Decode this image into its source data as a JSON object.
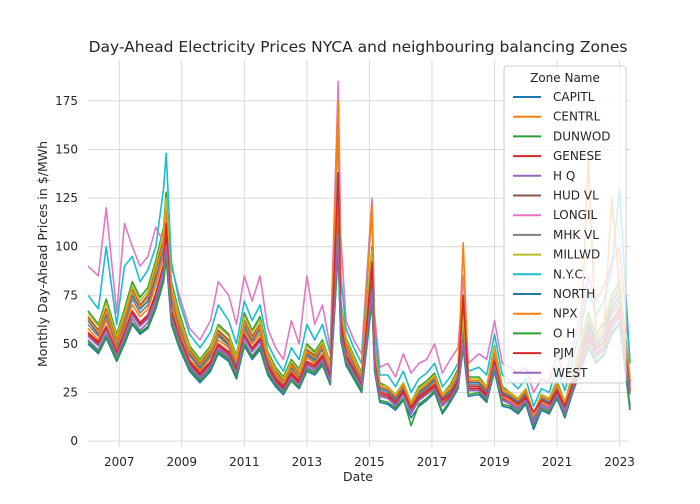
{
  "chart_data": {
    "type": "line",
    "title": "Day-Ahead Electricity Prices NYCA and neighbouring balancing Zones",
    "xlabel": "Date",
    "ylabel": "Monthly Day-Ahead Prices in $/MWh",
    "xlim": [
      "2006-01",
      "2023-05"
    ],
    "ylim": [
      -3,
      196
    ],
    "xticks": [
      "2007",
      "2009",
      "2011",
      "2013",
      "2015",
      "2017",
      "2019",
      "2021",
      "2023"
    ],
    "yticks": [
      0,
      25,
      50,
      75,
      100,
      125,
      150,
      175
    ],
    "grid": true,
    "legend": {
      "title": "Zone Name",
      "position": "top-right"
    },
    "x_dates": [
      "2006-01",
      "2006-05",
      "2006-08",
      "2006-12",
      "2007-03",
      "2007-06",
      "2007-09",
      "2007-12",
      "2008-03",
      "2008-06",
      "2008-07",
      "2008-09",
      "2008-12",
      "2009-04",
      "2009-08",
      "2009-12",
      "2010-03",
      "2010-07",
      "2010-10",
      "2011-01",
      "2011-04",
      "2011-07",
      "2011-10",
      "2012-01",
      "2012-04",
      "2012-07",
      "2012-10",
      "2013-01",
      "2013-04",
      "2013-07",
      "2013-10",
      "2014-01",
      "2014-02",
      "2014-04",
      "2014-07",
      "2014-10",
      "2015-02",
      "2015-03",
      "2015-05",
      "2015-08",
      "2015-11",
      "2016-02",
      "2016-05",
      "2016-08",
      "2016-11",
      "2017-02",
      "2017-05",
      "2017-08",
      "2017-11",
      "2018-01",
      "2018-03",
      "2018-07",
      "2018-10",
      "2019-01",
      "2019-04",
      "2019-07",
      "2019-10",
      "2020-01",
      "2020-04",
      "2020-07",
      "2020-10",
      "2021-01",
      "2021-04",
      "2021-07",
      "2021-10",
      "2022-01",
      "2022-04",
      "2022-07",
      "2022-10",
      "2023-01",
      "2023-05"
    ],
    "series": [
      {
        "name": "CAPITL",
        "color": "#1f77b4",
        "values": [
          62,
          55,
          65,
          50,
          62,
          75,
          68,
          72,
          85,
          100,
          115,
          75,
          60,
          45,
          38,
          45,
          55,
          50,
          40,
          60,
          52,
          58,
          42,
          35,
          30,
          38,
          34,
          45,
          42,
          48,
          36,
          120,
          65,
          48,
          40,
          32,
          90,
          45,
          27,
          26,
          22,
          28,
          18,
          25,
          28,
          32,
          22,
          26,
          34,
          60,
          30,
          30,
          26,
          45,
          25,
          23,
          20,
          25,
          13,
          22,
          20,
          28,
          18,
          32,
          45,
          60,
          50,
          55,
          68,
          75,
          30
        ]
      },
      {
        "name": "CENTRL",
        "color": "#ff7f0e",
        "values": [
          58,
          52,
          62,
          48,
          58,
          70,
          64,
          68,
          80,
          95,
          110,
          70,
          56,
          42,
          36,
          43,
          52,
          48,
          38,
          57,
          50,
          55,
          40,
          33,
          28,
          36,
          32,
          43,
          40,
          45,
          34,
          115,
          60,
          45,
          38,
          30,
          85,
          42,
          25,
          24,
          20,
          26,
          16,
          23,
          26,
          30,
          20,
          24,
          32,
          55,
          28,
          28,
          24,
          42,
          23,
          21,
          18,
          23,
          11,
          20,
          18,
          26,
          16,
          30,
          42,
          58,
          48,
          52,
          65,
          70,
          27
        ]
      },
      {
        "name": "DUNWOD",
        "color": "#2ca02c",
        "values": [
          67,
          60,
          73,
          55,
          68,
          82,
          74,
          79,
          93,
          110,
          128,
          82,
          66,
          49,
          42,
          49,
          60,
          55,
          44,
          66,
          57,
          64,
          46,
          38,
          33,
          42,
          37,
          50,
          46,
          52,
          40,
          135,
          72,
          53,
          44,
          35,
          100,
          50,
          30,
          28,
          24,
          30,
          20,
          28,
          31,
          35,
          24,
          29,
          37,
          66,
          33,
          33,
          28,
          49,
          28,
          25,
          22,
          27,
          14,
          24,
          22,
          31,
          20,
          35,
          50,
          66,
          55,
          61,
          75,
          82,
          33
        ]
      },
      {
        "name": "GENESE",
        "color": "#d62728",
        "values": [
          55,
          50,
          58,
          45,
          55,
          66,
          60,
          64,
          75,
          90,
          104,
          66,
          53,
          40,
          34,
          40,
          49,
          45,
          36,
          54,
          47,
          52,
          38,
          31,
          27,
          34,
          30,
          40,
          38,
          43,
          32,
          108,
          57,
          43,
          36,
          28,
          80,
          40,
          24,
          23,
          19,
          25,
          15,
          22,
          25,
          28,
          19,
          23,
          30,
          52,
          27,
          27,
          23,
          40,
          22,
          20,
          17,
          22,
          10,
          19,
          17,
          25,
          15,
          28,
          40,
          54,
          45,
          49,
          61,
          66,
          25
        ]
      },
      {
        "name": "H Q",
        "color": "#9467bd",
        "values": [
          52,
          47,
          55,
          43,
          52,
          63,
          57,
          61,
          71,
          85,
          98,
          63,
          50,
          38,
          32,
          38,
          47,
          43,
          34,
          51,
          44,
          49,
          36,
          30,
          26,
          32,
          29,
          38,
          36,
          41,
          31,
          102,
          55,
          41,
          34,
          27,
          76,
          38,
          23,
          22,
          19,
          24,
          15,
          21,
          24,
          27,
          19,
          22,
          29,
          51,
          26,
          26,
          22,
          38,
          21,
          20,
          17,
          21,
          11,
          19,
          17,
          24,
          15,
          27,
          38,
          51,
          43,
          47,
          58,
          64,
          26
        ]
      },
      {
        "name": "HUD VL",
        "color": "#8c564b",
        "values": [
          64,
          57,
          68,
          52,
          64,
          78,
          70,
          75,
          88,
          104,
          120,
          78,
          62,
          47,
          40,
          47,
          57,
          52,
          42,
          62,
          54,
          60,
          44,
          36,
          31,
          40,
          35,
          47,
          44,
          50,
          37,
          126,
          68,
          50,
          42,
          33,
          94,
          47,
          28,
          27,
          23,
          29,
          19,
          26,
          29,
          33,
          23,
          27,
          35,
          62,
          31,
          31,
          27,
          47,
          26,
          24,
          21,
          26,
          14,
          23,
          21,
          29,
          19,
          33,
          47,
          62,
          52,
          57,
          71,
          78,
          31
        ]
      },
      {
        "name": "LONGIL",
        "color": "#e377c2",
        "values": [
          90,
          85,
          120,
          66,
          112,
          100,
          90,
          95,
          110,
          102,
          120,
          90,
          75,
          58,
          52,
          62,
          82,
          75,
          60,
          85,
          72,
          85,
          58,
          48,
          42,
          62,
          50,
          85,
          60,
          70,
          48,
          185,
          105,
          62,
          52,
          45,
          125,
          65,
          38,
          40,
          33,
          45,
          35,
          40,
          42,
          50,
          35,
          42,
          48,
          85,
          40,
          45,
          42,
          62,
          40,
          38,
          35,
          38,
          25,
          32,
          30,
          45,
          32,
          48,
          65,
          85,
          72,
          80,
          92,
          100,
          42
        ]
      },
      {
        "name": "MHK VL",
        "color": "#7f7f7f",
        "values": [
          60,
          54,
          64,
          49,
          60,
          73,
          66,
          70,
          83,
          98,
          113,
          73,
          58,
          44,
          37,
          44,
          54,
          49,
          39,
          58,
          51,
          57,
          41,
          34,
          29,
          37,
          33,
          44,
          41,
          47,
          35,
          118,
          63,
          47,
          39,
          31,
          88,
          44,
          26,
          25,
          21,
          27,
          17,
          24,
          27,
          31,
          21,
          25,
          33,
          58,
          29,
          29,
          25,
          44,
          24,
          22,
          19,
          24,
          12,
          21,
          19,
          27,
          17,
          31,
          44,
          58,
          49,
          54,
          66,
          72,
          29
        ]
      },
      {
        "name": "MILLWD",
        "color": "#bcbd22",
        "values": [
          66,
          59,
          71,
          54,
          66,
          80,
          72,
          77,
          91,
          108,
          125,
          80,
          64,
          48,
          41,
          48,
          59,
          54,
          43,
          64,
          56,
          62,
          45,
          37,
          32,
          41,
          36,
          49,
          45,
          51,
          39,
          132,
          70,
          52,
          43,
          34,
          98,
          49,
          29,
          28,
          24,
          30,
          20,
          27,
          30,
          34,
          24,
          28,
          36,
          64,
          32,
          32,
          28,
          48,
          27,
          25,
          22,
          27,
          14,
          24,
          22,
          30,
          20,
          34,
          49,
          64,
          54,
          60,
          73,
          80,
          32
        ]
      },
      {
        "name": "N.Y.C.",
        "color": "#17becf",
        "values": [
          75,
          68,
          100,
          60,
          90,
          95,
          82,
          88,
          100,
          130,
          148,
          92,
          72,
          55,
          48,
          56,
          70,
          62,
          50,
          72,
          62,
          70,
          50,
          42,
          36,
          48,
          42,
          60,
          52,
          60,
          45,
          160,
          85,
          58,
          48,
          40,
          120,
          58,
          34,
          34,
          28,
          36,
          25,
          32,
          35,
          40,
          28,
          33,
          40,
          72,
          36,
          38,
          34,
          55,
          34,
          31,
          27,
          32,
          18,
          27,
          25,
          38,
          26,
          42,
          58,
          78,
          65,
          72,
          90,
          130,
          40
        ]
      },
      {
        "name": "NORTH",
        "color": "#1f77b4",
        "values": [
          50,
          45,
          53,
          41,
          50,
          60,
          55,
          58,
          68,
          82,
          94,
          60,
          48,
          36,
          30,
          36,
          45,
          41,
          32,
          49,
          42,
          47,
          34,
          28,
          24,
          31,
          27,
          36,
          34,
          39,
          29,
          98,
          52,
          39,
          32,
          25,
          72,
          36,
          20,
          19,
          16,
          21,
          12,
          18,
          21,
          25,
          14,
          20,
          27,
          48,
          23,
          24,
          20,
          36,
          18,
          17,
          14,
          19,
          6,
          16,
          14,
          22,
          12,
          25,
          36,
          48,
          40,
          44,
          55,
          60,
          16
        ]
      },
      {
        "name": "NPX",
        "color": "#ff7f0e",
        "values": [
          63,
          56,
          67,
          51,
          63,
          77,
          69,
          74,
          87,
          102,
          118,
          76,
          61,
          46,
          39,
          46,
          56,
          51,
          41,
          61,
          53,
          59,
          43,
          35,
          30,
          39,
          34,
          46,
          43,
          49,
          37,
          175,
          67,
          49,
          41,
          33,
          122,
          46,
          28,
          27,
          23,
          29,
          19,
          26,
          29,
          33,
          23,
          27,
          35,
          102,
          31,
          31,
          27,
          46,
          26,
          24,
          21,
          26,
          13,
          23,
          21,
          29,
          19,
          33,
          46,
          145,
          52,
          57,
          125,
          78,
          30
        ]
      },
      {
        "name": "O H",
        "color": "#2ca02c",
        "values": [
          51,
          46,
          54,
          42,
          51,
          61,
          56,
          59,
          69,
          83,
          95,
          61,
          49,
          37,
          31,
          37,
          46,
          42,
          33,
          50,
          43,
          48,
          35,
          29,
          25,
          31,
          28,
          37,
          35,
          40,
          30,
          100,
          53,
          40,
          33,
          26,
          74,
          37,
          21,
          20,
          17,
          22,
          8,
          19,
          22,
          26,
          15,
          21,
          28,
          49,
          24,
          25,
          21,
          37,
          19,
          18,
          15,
          20,
          8,
          17,
          15,
          23,
          13,
          26,
          37,
          49,
          41,
          45,
          56,
          61,
          18
        ]
      },
      {
        "name": "PJM",
        "color": "#d62728",
        "values": [
          56,
          51,
          59,
          46,
          56,
          67,
          61,
          65,
          76,
          91,
          112,
          67,
          54,
          41,
          35,
          41,
          50,
          46,
          37,
          55,
          48,
          53,
          39,
          32,
          28,
          35,
          31,
          41,
          39,
          44,
          33,
          138,
          62,
          44,
          37,
          29,
          92,
          41,
          25,
          24,
          20,
          26,
          17,
          23,
          26,
          29,
          21,
          24,
          31,
          75,
          28,
          28,
          24,
          41,
          24,
          22,
          19,
          23,
          15,
          21,
          19,
          26,
          18,
          29,
          41,
          56,
          47,
          51,
          62,
          68,
          26
        ]
      },
      {
        "name": "WEST",
        "color": "#9467bd",
        "values": [
          54,
          49,
          57,
          44,
          54,
          65,
          59,
          63,
          73,
          88,
          101,
          64,
          52,
          39,
          33,
          39,
          48,
          44,
          35,
          53,
          46,
          51,
          37,
          30,
          26,
          33,
          29,
          39,
          37,
          42,
          31,
          106,
          56,
          42,
          35,
          28,
          78,
          39,
          23,
          22,
          18,
          24,
          14,
          21,
          24,
          27,
          18,
          22,
          29,
          51,
          26,
          26,
          22,
          39,
          21,
          19,
          16,
          21,
          9,
          18,
          16,
          24,
          14,
          27,
          39,
          53,
          44,
          48,
          60,
          65,
          24
        ]
      }
    ]
  }
}
